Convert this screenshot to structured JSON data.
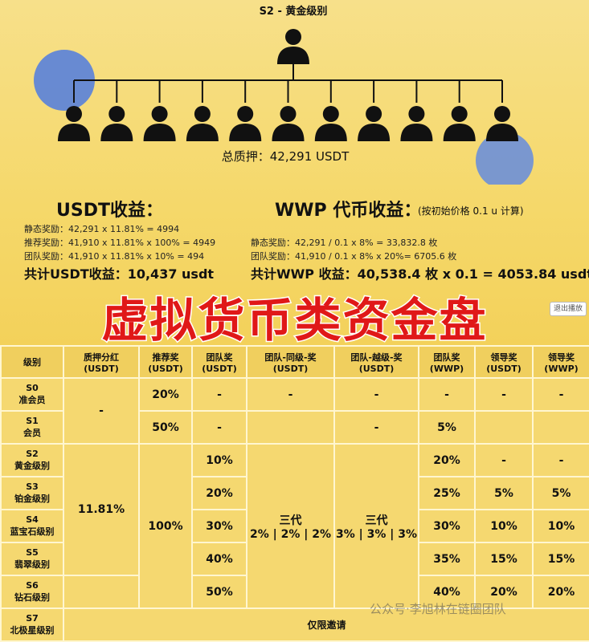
{
  "header": {
    "title": "S2 - 黄金级别",
    "total_stake": "总质押：42,291 USDT"
  },
  "usdt_income": {
    "title": "USDT收益：",
    "lines": [
      "静态奖励：42,291 x 11.81% = 4994",
      "推荐奖励：41,910 x 11.81% x 100% = 4949",
      "团队奖励：41,910 x 11.81% x 10% = 494"
    ],
    "total": "共计USDT收益：10,437 usdt"
  },
  "wwp_income": {
    "title": "WWP 代币收益：",
    "note": "(按初始价格 0.1 u 计算)",
    "lines": [
      "静态奖励：42,291 / 0.1 x 8% = 33,832.8 枚",
      "团队奖励：41,910 / 0.1 x 8% x 20%= 6705.6 枚"
    ],
    "total": "共计WWP 收益：40,538.4 枚 x 0.1 = 4053.84 usdt"
  },
  "banner": "虚拟货币类资金盘",
  "exit_button": "退出播放",
  "table": {
    "headers": [
      {
        "label": "级别"
      },
      {
        "label": "质押分红",
        "unit": "(USDT)"
      },
      {
        "label": "推荐奖",
        "unit": "(USDT)"
      },
      {
        "label": "团队奖",
        "unit": "(USDT)"
      },
      {
        "label": "团队-同级-奖",
        "unit": "(USDT)"
      },
      {
        "label": "团队-越级-奖",
        "unit": "(USDT)"
      },
      {
        "label": "团队奖",
        "unit": "(WWP)"
      },
      {
        "label": "领导奖",
        "unit": "(USDT)"
      },
      {
        "label": "领导奖",
        "unit": "(WWP)"
      }
    ],
    "rows": [
      {
        "level": "S0",
        "name": "准会员",
        "cells": [
          "-",
          "20%",
          "-",
          "-",
          "-",
          "-",
          "-",
          "-"
        ]
      },
      {
        "level": "S1",
        "name": "会员",
        "cells": [
          "50%",
          "-",
          "-",
          "5%"
        ]
      },
      {
        "level": "S2",
        "name": "黄金级别",
        "cells": [
          "11.81%",
          "100%",
          "10%",
          "三代",
          "2% | 2% | 2%",
          "三代",
          "3% | 3% | 3%",
          "20%",
          "-",
          "-"
        ]
      },
      {
        "level": "S3",
        "name": "铂金级别",
        "cells": [
          "20%",
          "25%",
          "5%",
          "5%"
        ]
      },
      {
        "level": "S4",
        "name": "蓝宝石级别",
        "cells": [
          "30%",
          "30%",
          "10%",
          "10%"
        ]
      },
      {
        "level": "S5",
        "name": "翡翠级别",
        "cells": [
          "40%",
          "35%",
          "15%",
          "15%"
        ]
      },
      {
        "level": "S6",
        "name": "钻石级别",
        "cells": [
          "50%",
          "40%",
          "20%",
          "20%"
        ]
      },
      {
        "level": "S7",
        "name": "北极星级别",
        "cells": [
          "仅限邀请"
        ]
      }
    ]
  },
  "watermark": "公众号·李旭林在链圈团队"
}
